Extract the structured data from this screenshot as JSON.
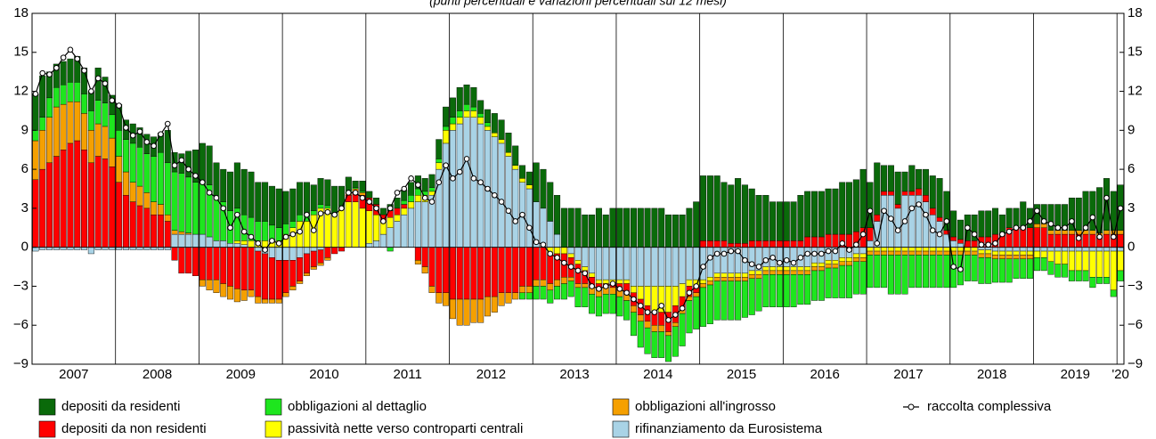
{
  "chart_data": {
    "type": "stacked-bar",
    "subtitle": "(punti percentuali e variazioni percentuali sui 12 mesi)",
    "categories": [
      "2007",
      null,
      null,
      null,
      null,
      null,
      null,
      null,
      null,
      null,
      null,
      null,
      "2008",
      null,
      null,
      null,
      null,
      null,
      null,
      null,
      null,
      null,
      null,
      null,
      "2009",
      null,
      null,
      null,
      null,
      null,
      null,
      null,
      null,
      null,
      null,
      null,
      "2010",
      null,
      null,
      null,
      null,
      null,
      null,
      null,
      null,
      null,
      null,
      null,
      "2011",
      null,
      null,
      null,
      null,
      null,
      null,
      null,
      null,
      null,
      null,
      null,
      "2012",
      null,
      null,
      null,
      null,
      null,
      null,
      null,
      null,
      null,
      null,
      null,
      "2013",
      null,
      null,
      null,
      null,
      null,
      null,
      null,
      null,
      null,
      null,
      null,
      "2014",
      null,
      null,
      null,
      null,
      null,
      null,
      null,
      null,
      null,
      null,
      null,
      "2015",
      null,
      null,
      null,
      null,
      null,
      null,
      null,
      null,
      null,
      null,
      null,
      "2016",
      null,
      null,
      null,
      null,
      null,
      null,
      null,
      null,
      null,
      null,
      null,
      "2017",
      null,
      null,
      null,
      null,
      null,
      null,
      null,
      null,
      null,
      null,
      null,
      "2018",
      null,
      null,
      null,
      null,
      null,
      null,
      null,
      null,
      null,
      null,
      null,
      "2019",
      null,
      null,
      null,
      null,
      null,
      null,
      null,
      null,
      null,
      null,
      null,
      "'20"
    ],
    "series": [
      {
        "name": "depositi da residenti",
        "color": "#0a6a0a",
        "values": [
          2.8,
          3.2,
          2.0,
          1.8,
          1.8,
          1.8,
          2.0,
          2.0,
          1.5,
          2.5,
          2.0,
          1.5,
          2,
          1.5,
          1.5,
          1.5,
          1.5,
          1.5,
          1.5,
          2.5,
          1.5,
          1.5,
          2,
          2.5,
          3,
          3,
          2.5,
          2.5,
          3,
          3.5,
          3.5,
          3.5,
          3,
          3,
          3,
          3,
          2.5,
          2.5,
          2.5,
          2.5,
          2,
          2,
          2,
          2,
          1.5,
          1,
          0.5,
          0.8,
          0.5,
          0.5,
          0.5,
          0.5,
          0.8,
          0.8,
          1,
          1,
          1,
          1,
          1.5,
          1.5,
          1.5,
          1.8,
          1.5,
          1.5,
          1,
          1,
          1.5,
          1.5,
          1.5,
          1.5,
          1,
          1,
          3,
          3,
          3,
          3,
          3,
          3,
          3,
          2.5,
          2.5,
          3,
          2.5,
          3,
          3,
          3,
          3,
          3,
          3,
          3,
          3,
          2.5,
          2.5,
          2.5,
          3,
          3.5,
          5,
          5,
          5,
          4.5,
          4.5,
          5,
          4.5,
          4,
          3.5,
          3.5,
          3,
          3,
          3,
          3,
          3.5,
          3.5,
          3.5,
          3.5,
          3.5,
          3.5,
          4,
          4,
          4,
          4.5,
          3.5,
          4,
          2,
          2,
          2.5,
          1.5,
          2,
          1.5,
          2,
          2.5,
          3,
          3,
          2,
          1.5,
          2,
          2,
          2,
          2,
          2,
          1.5,
          1.5,
          1.5,
          2,
          1.5,
          1.5,
          1.5,
          2,
          2,
          2,
          2.5,
          2.5,
          3,
          3,
          3.5,
          4,
          3,
          3.5
        ]
      },
      {
        "name": "depositi da non residenti",
        "color": "#ff0000",
        "values": [
          5.2,
          6,
          6.5,
          7,
          7.5,
          8,
          8.2,
          7.5,
          6.5,
          7,
          6.8,
          6.2,
          5,
          4,
          3.5,
          3.2,
          3,
          2.5,
          2.5,
          2,
          -1,
          -2,
          -2,
          -2.2,
          -2.5,
          -2.5,
          -2.5,
          -2.8,
          -3,
          -3.2,
          -3.3,
          -3.3,
          -3.5,
          -3.5,
          -3.2,
          -3,
          -2.5,
          -2,
          -1.8,
          -1.5,
          -1.2,
          -1,
          -0.8,
          -0.5,
          -0.3,
          0.5,
          0.8,
          1,
          1,
          0.8,
          0.5,
          0.5,
          0.5,
          0.3,
          0,
          -1,
          -1.5,
          -3,
          -3.5,
          -3.5,
          -4,
          -4,
          -4,
          -4,
          -4,
          -3.8,
          -3.8,
          -3.5,
          -3.5,
          -3.5,
          -3,
          -3,
          -2.5,
          -2.5,
          -2.3,
          -2,
          -1.8,
          -1.5,
          -1.5,
          -1,
          -0.8,
          -0.5,
          -0.3,
          -0.3,
          -0.5,
          -0.8,
          -1,
          -1.2,
          -1.2,
          -1,
          -1,
          -1.5,
          -1.3,
          -1,
          -0.8,
          -0.5,
          0.5,
          0.5,
          0.5,
          0.5,
          0.3,
          0.3,
          0.3,
          0.5,
          0.5,
          0.5,
          0.5,
          0.5,
          0.5,
          0.5,
          0.5,
          0.8,
          0.8,
          0.8,
          1,
          1,
          1,
          1,
          1.2,
          1.5,
          1,
          0.5,
          0.3,
          0.3,
          0.3,
          0.3,
          0.3,
          0.5,
          0.5,
          0.5,
          0.3,
          0.3,
          0.3,
          0.3,
          0.5,
          0.5,
          0.8,
          0.8,
          1,
          1,
          1.5,
          1.5,
          1.5,
          1.5,
          1.5,
          1.5,
          1,
          1,
          1,
          1,
          1,
          1,
          1,
          0.8,
          1,
          1,
          1
        ]
      },
      {
        "name": "obbligazioni al dettaglio",
        "color": "#1ee61e",
        "values": [
          0.8,
          1,
          1.5,
          1.5,
          1.5,
          1.5,
          1.5,
          1.5,
          1.5,
          1.8,
          1.8,
          1.8,
          2,
          2.5,
          3,
          3,
          3,
          3.5,
          4,
          4,
          4.5,
          4.5,
          4.3,
          4,
          4,
          4,
          3.5,
          3,
          2.5,
          2.5,
          2,
          1.8,
          1.5,
          1.5,
          1.2,
          1,
          0.8,
          0.5,
          0.5,
          0.5,
          0.3,
          0.3,
          0.2,
          0.2,
          0.2,
          0.2,
          0.1,
          0.1,
          0,
          0,
          0,
          -0.3,
          0,
          0.3,
          0.5,
          0.5,
          0.3,
          0.3,
          0.3,
          0.3,
          0.5,
          0.5,
          0.5,
          0.3,
          0.3,
          0.3,
          0,
          0,
          0,
          0,
          -0.5,
          -0.5,
          -1,
          -1,
          -1,
          -1,
          -1.2,
          -1.2,
          -1.5,
          -1.5,
          -1.5,
          -1.5,
          -1.5,
          -1.5,
          -1.5,
          -1.5,
          -1.8,
          -2,
          -2,
          -2,
          -2,
          -2,
          -2.3,
          -2.5,
          -2.5,
          -2.5,
          -3,
          -3,
          -3,
          -3,
          -3,
          -3,
          -2.8,
          -2.8,
          -2.5,
          -2.5,
          -2.5,
          -2.5,
          -2.5,
          -2.5,
          -2.3,
          -2.3,
          -2.3,
          -2.3,
          -2.3,
          -2.3,
          -2.5,
          -2.5,
          -2.5,
          -2.5,
          -2.5,
          -2.5,
          -2.5,
          -3,
          -3,
          -3,
          -2.5,
          -2.5,
          -2.5,
          -2.5,
          -2.5,
          -2.5,
          -2.5,
          -2.3,
          -2,
          -2,
          -2,
          -2,
          -1.8,
          -1.8,
          -1.8,
          -1.5,
          -1.5,
          -1.5,
          -1,
          -1,
          -1,
          -1,
          -1,
          -0.8,
          -0.8,
          -0.8,
          -0.8,
          -0.5,
          -0.5,
          -0.5,
          -0.8
        ]
      },
      {
        "name": "passività nette verso controparti centrali",
        "color": "#ffff00",
        "values": [
          0,
          0,
          0,
          0,
          0,
          0,
          0,
          0,
          0,
          0,
          0,
          0,
          0,
          0,
          0,
          0,
          0,
          0,
          0,
          0,
          0,
          0,
          0,
          0,
          0,
          0,
          0,
          0,
          0,
          0.2,
          0.3,
          0.5,
          0.5,
          0.5,
          0.5,
          0.5,
          1,
          1.5,
          2,
          2,
          2.5,
          3,
          3,
          2.5,
          3,
          3.5,
          3.5,
          3,
          2.5,
          2,
          1,
          0.8,
          0.5,
          0.5,
          0.5,
          0.5,
          0.5,
          0.3,
          0.5,
          1,
          0.5,
          0.5,
          0.5,
          0.5,
          0.5,
          0.3,
          0.3,
          0.3,
          0.3,
          0.3,
          0.3,
          0.3,
          0,
          0,
          -0.5,
          -0.5,
          -0.5,
          -0.3,
          -0.3,
          -0.3,
          -0.3,
          -0.3,
          -0.3,
          -0.3,
          -0.3,
          -0.3,
          -0.5,
          -1,
          -1.5,
          -2,
          -2,
          -2,
          -1.5,
          -1,
          -0.5,
          -0.5,
          -0.3,
          -0.3,
          -0.3,
          -0.3,
          -0.3,
          -0.3,
          -0.3,
          -0.3,
          -0.3,
          -0.3,
          -0.3,
          -0.3,
          -0.3,
          -0.3,
          -0.3,
          -0.3,
          -0.3,
          -0.3,
          -0.3,
          -0.3,
          -0.3,
          -0.3,
          -0.3,
          -0.3,
          -0.3,
          -0.3,
          -0.3,
          -0.3,
          -0.3,
          -0.3,
          -0.3,
          -0.3,
          -0.3,
          -0.3,
          -0.3,
          -0.3,
          -0.3,
          -0.3,
          -0.3,
          -0.3,
          -0.3,
          -0.3,
          -0.3,
          -0.3,
          -0.3,
          -0.3,
          -0.3,
          -0.3,
          -0.5,
          -0.5,
          -0.8,
          -1,
          -1,
          -1.5,
          -1.5,
          -1.5,
          -2,
          -2,
          -2,
          -3,
          -1.5
        ]
      },
      {
        "name": "obbligazioni all'ingrosso",
        "color": "#f5a000",
        "values": [
          3,
          3,
          3.5,
          3.8,
          3.5,
          3.2,
          3,
          2.8,
          2.5,
          2.5,
          2.5,
          2.2,
          2,
          1.8,
          1.5,
          1.5,
          1.2,
          1,
          0.8,
          0.5,
          0.3,
          0.2,
          0.1,
          0,
          -0.5,
          -0.8,
          -1,
          -1,
          -1,
          -1,
          -0.8,
          -0.5,
          -0.5,
          -0.3,
          -0.3,
          -0.3,
          -0.3,
          -0.3,
          -0.2,
          -0.2,
          -0.2,
          -0.2,
          -0.2,
          0,
          0,
          0.2,
          0.2,
          0.2,
          0,
          0,
          0,
          0,
          0,
          0,
          0,
          -0.3,
          -0.5,
          -0.5,
          -0.8,
          -1,
          -1.5,
          -2,
          -2,
          -1.8,
          -1.8,
          -1.5,
          -1.2,
          -1,
          -0.8,
          -0.5,
          -0.5,
          -0.5,
          -0.5,
          -0.5,
          -0.5,
          -0.5,
          -0.5,
          -0.3,
          -0.3,
          -0.3,
          -0.5,
          -0.5,
          -0.5,
          -0.5,
          -0.5,
          -0.5,
          -0.5,
          -0.5,
          -0.5,
          -0.5,
          -0.5,
          -0.3,
          -0.3,
          -0.3,
          -0.3,
          -0.3,
          -0.3,
          -0.3,
          -0.3,
          -0.3,
          -0.3,
          -0.3,
          -0.3,
          -0.3,
          -0.3,
          -0.3,
          -0.3,
          -0.3,
          -0.3,
          -0.3,
          -0.3,
          -0.3,
          -0.3,
          -0.3,
          -0.3,
          -0.3,
          -0.3,
          -0.3,
          -0.3,
          -0.3,
          -0.3,
          -0.3,
          -0.3,
          -0.3,
          -0.3,
          -0.3,
          -0.3,
          -0.3,
          -0.3,
          -0.3,
          -0.3,
          -0.3,
          -0.3,
          -0.3,
          -0.3,
          -0.3,
          -0.3,
          -0.3,
          -0.3,
          -0.3,
          -0.3,
          -0.3,
          -0.3,
          -0.3,
          0.3,
          0.3,
          0.3,
          0.3,
          0.3,
          0.3,
          0.3,
          0.3,
          0.3,
          0.3,
          0.3,
          0.3,
          0.3
        ]
      },
      {
        "name": "rifinanziamento da Eurosistema",
        "color": "#a9d3e6",
        "values": [
          -0.3,
          -0.2,
          -0.2,
          -0.2,
          -0.2,
          -0.2,
          -0.2,
          -0.2,
          -0.5,
          -0.2,
          -0.2,
          -0.2,
          -0.2,
          -0.2,
          -0.2,
          -0.2,
          -0.2,
          -0.2,
          -0.2,
          -0.2,
          1,
          1,
          1,
          1,
          1,
          0.8,
          0.5,
          0.5,
          0.3,
          0.3,
          0.2,
          0,
          -0.3,
          -0.5,
          -0.8,
          -1,
          -1,
          -1,
          -0.8,
          -0.5,
          -0.3,
          -0.2,
          0,
          0,
          0,
          0,
          0,
          0,
          0.3,
          0.5,
          1,
          1.5,
          2,
          2.5,
          3,
          3.5,
          3.5,
          4,
          6,
          8,
          9,
          9.5,
          10,
          10,
          9.5,
          9,
          8.5,
          8,
          7,
          6,
          5,
          4.5,
          3.5,
          3,
          2,
          1,
          0,
          -0.5,
          -1,
          -1.5,
          -2,
          -2.5,
          -2.5,
          -2.5,
          -2.5,
          -2.5,
          -3,
          -3,
          -3,
          -3,
          -3,
          -3,
          -3,
          -2.8,
          -2.5,
          -2.5,
          -2.5,
          -2.3,
          -2,
          -2,
          -2,
          -2,
          -2,
          -1.8,
          -1.8,
          -1.5,
          -1.5,
          -1.5,
          -1.5,
          -1.5,
          -1.5,
          -1.5,
          -1.2,
          -1.2,
          -1,
          -1,
          -0.8,
          -0.8,
          -0.5,
          -0.5,
          0.5,
          2,
          4,
          4,
          3,
          4,
          4,
          4,
          3.5,
          2.5,
          2,
          1,
          0.5,
          0.3,
          0,
          0,
          -0.2,
          -0.2,
          -0.3,
          -0.3,
          -0.3,
          -0.3,
          -0.3,
          -0.3,
          -0.3,
          -0.3,
          -0.3,
          -0.3,
          -0.3,
          -0.3,
          -0.3,
          -0.3,
          -0.3,
          -0.3,
          -0.3,
          -0.3,
          -0.3
        ]
      }
    ],
    "line": {
      "name": "raccolta complessiva",
      "color": "#000000",
      "values": [
        11.8,
        13.4,
        13.3,
        13.8,
        14.6,
        15.2,
        14.5,
        13.6,
        12,
        13,
        12.6,
        11.3,
        10.9,
        9.2,
        8.6,
        8.9,
        8.1,
        7.8,
        8.7,
        9.5,
        6.3,
        6.7,
        6,
        5.5,
        5,
        4.2,
        3.8,
        3,
        1.5,
        2.5,
        1.2,
        0.8,
        0.3,
        -0.2,
        0.5,
        0.3,
        0.8,
        1,
        1.2,
        2.5,
        1.3,
        2.6,
        2.7,
        2.5,
        3,
        4.2,
        4.2,
        3.8,
        3.5,
        3,
        2,
        3,
        4.2,
        4.5,
        5.3,
        4.8,
        3.8,
        3.5,
        5,
        6.3,
        5.3,
        5.8,
        6.8,
        5.3,
        5,
        4.5,
        4,
        3.5,
        2.8,
        2,
        2.5,
        1.5,
        0.4,
        0.2,
        -0.5,
        -0.8,
        -1.2,
        -1.5,
        -1.8,
        -2,
        -3,
        -3.2,
        -3,
        -2.8,
        -3.2,
        -3.5,
        -4,
        -4.5,
        -5,
        -5,
        -4.5,
        -5.6,
        -5.2,
        -4.7,
        -3.5,
        -3,
        -1.5,
        -0.8,
        -0.5,
        -0.5,
        -0.3,
        -0.3,
        -1,
        -1.3,
        -1.5,
        -1,
        -0.8,
        -1.2,
        -1,
        -1.2,
        -0.8,
        -0.5,
        -0.5,
        -0.5,
        -0.3,
        -0.3,
        0.3,
        -0.2,
        0.2,
        1,
        2.8,
        0.3,
        2.8,
        2.2,
        1.3,
        2,
        3,
        3.3,
        2.5,
        1.3,
        1,
        2,
        -1.5,
        -1.7,
        1.5,
        1,
        0.2,
        0.2,
        0.3,
        1,
        1.2,
        1.5,
        1.5,
        2,
        2.8,
        2,
        1.8,
        1.5,
        1.5,
        2,
        0.7,
        1.5,
        2.3,
        0.8,
        3.8,
        0.8,
        3
      ]
    },
    "ylim": [
      -9,
      18
    ],
    "yticks": [
      {
        "value": -9,
        "label": "−9"
      },
      {
        "value": -6,
        "label": "−6"
      },
      {
        "value": -3,
        "label": "−3"
      },
      0,
      3,
      6,
      9,
      12,
      15,
      18
    ],
    "grid": "x",
    "legend": "bottom"
  }
}
